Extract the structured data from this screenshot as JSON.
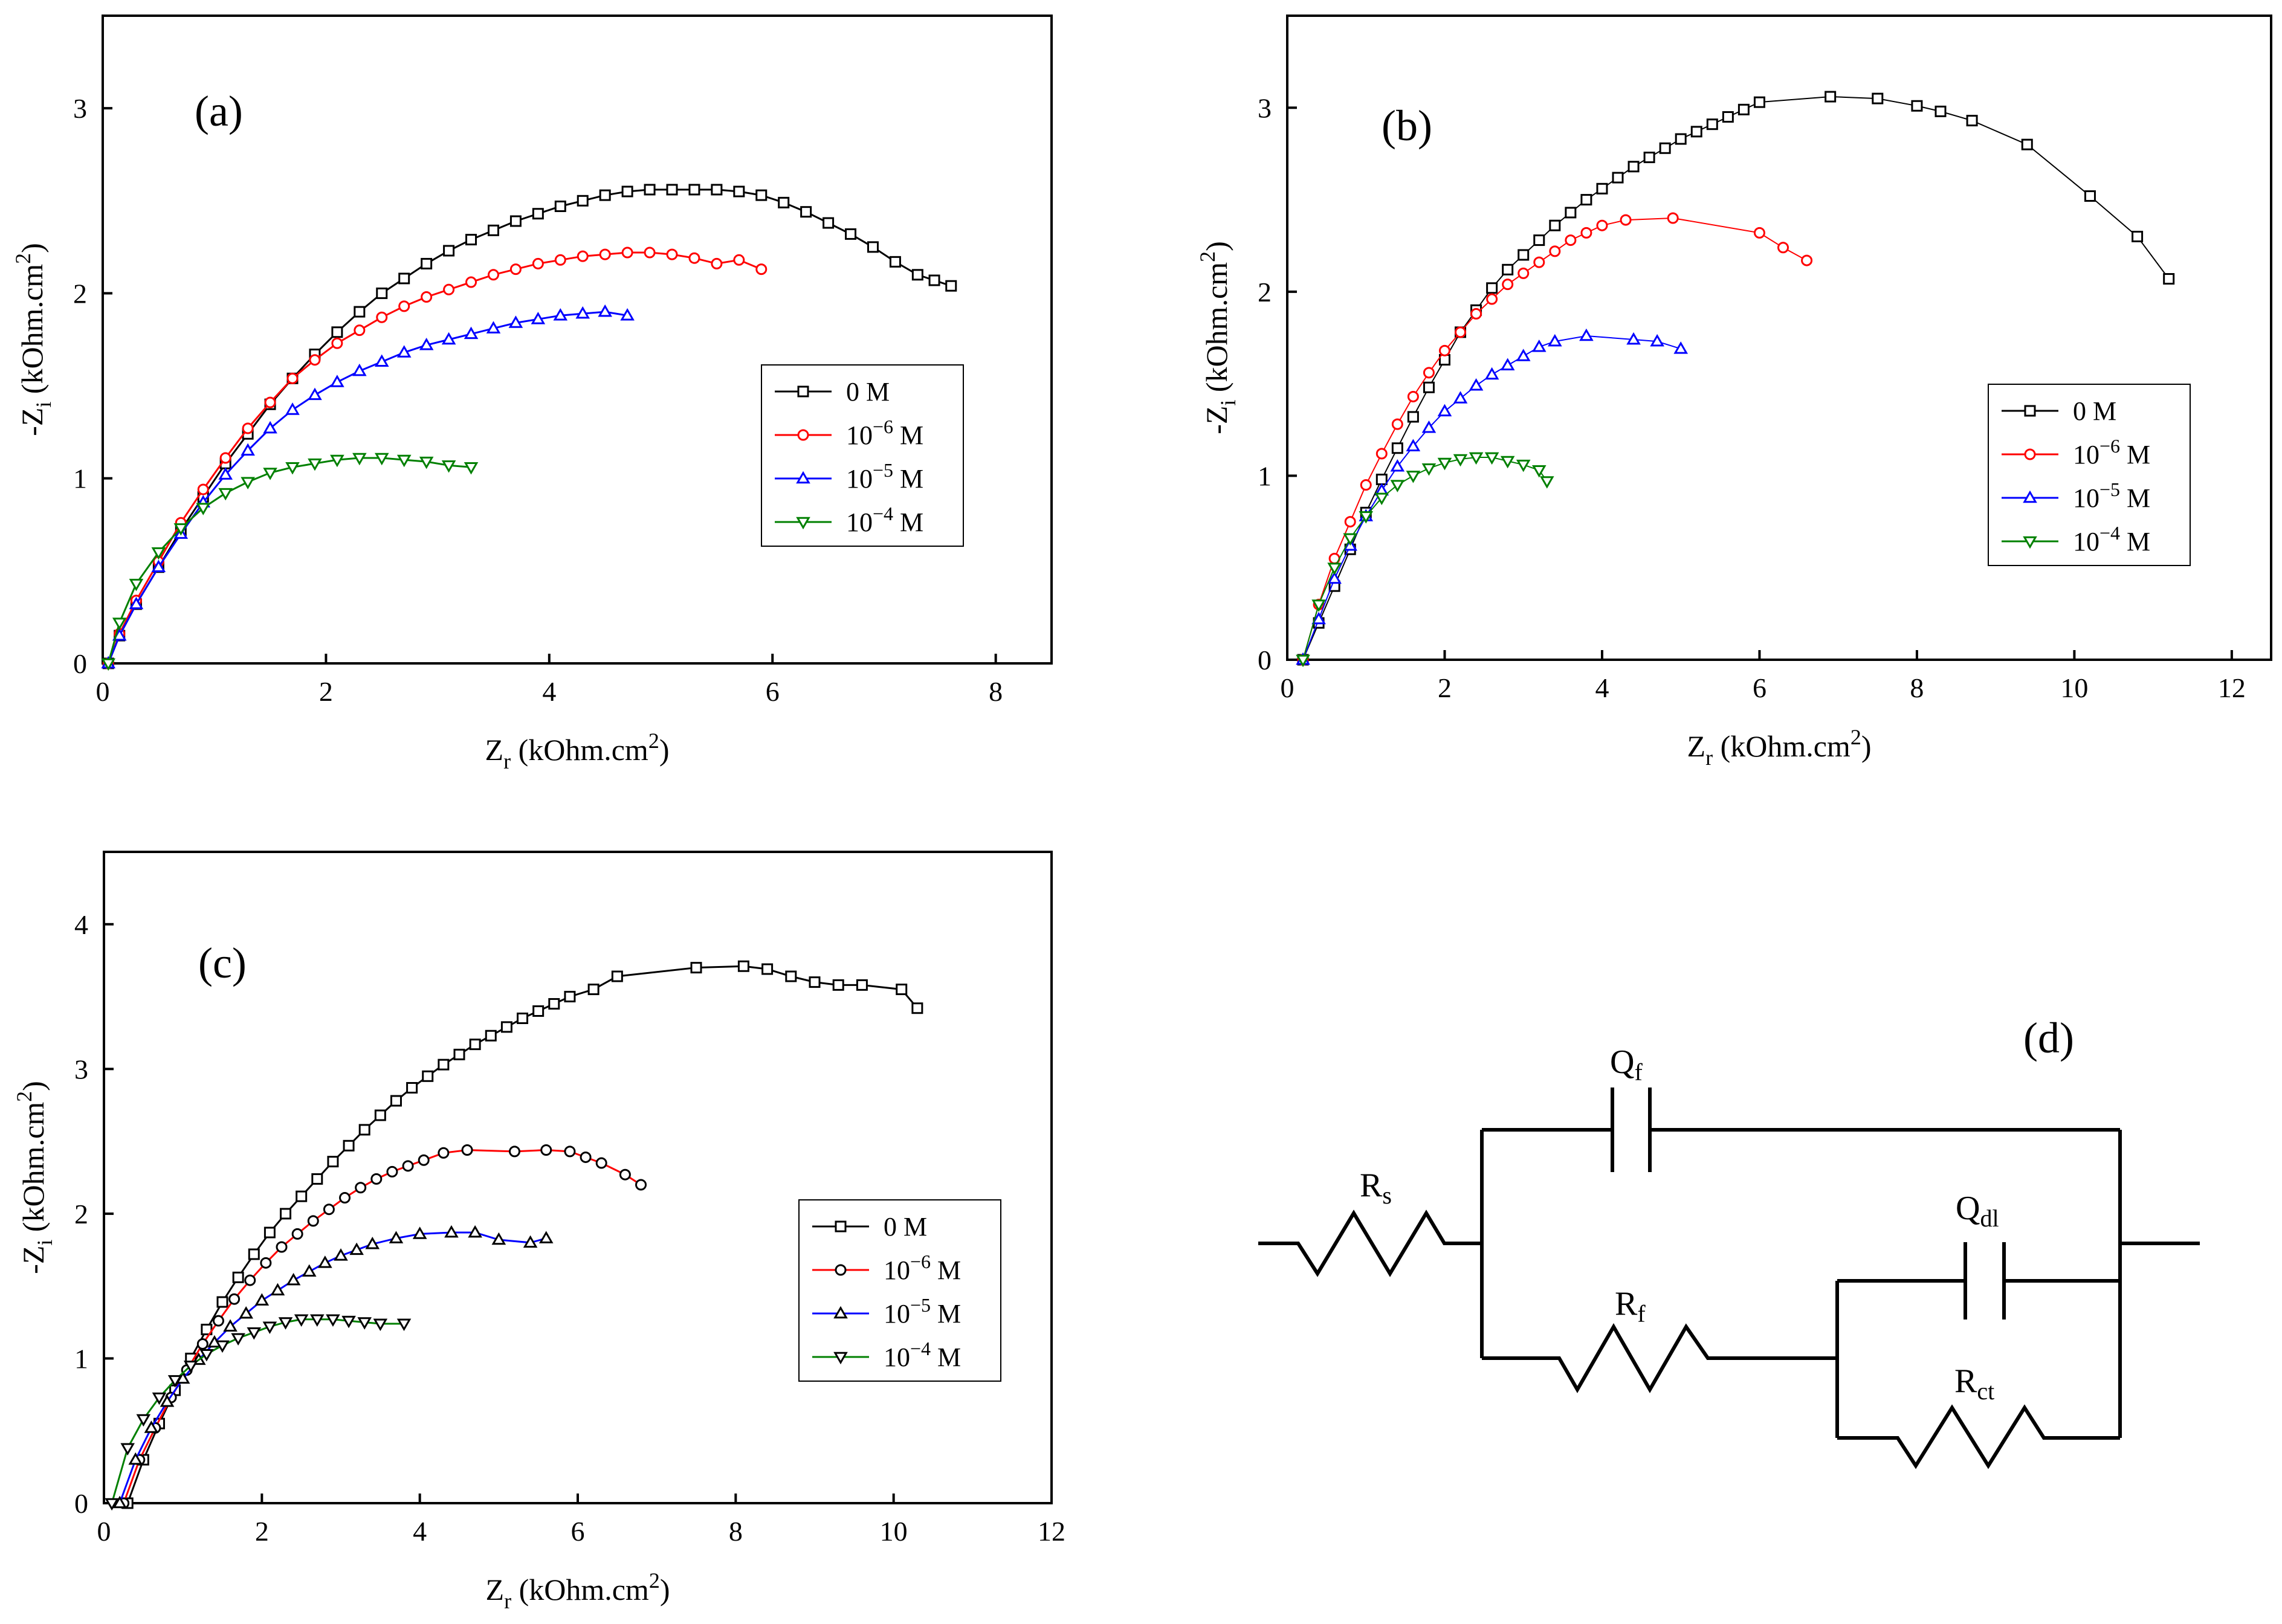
{
  "figure": {
    "xlabel_main": "Z",
    "xlabel_sub": "r",
    "xlabel_rest": " (kOhm.cm",
    "xlabel_sup": "2",
    "xlabel_close": ")",
    "ylabel_main": "-Z",
    "ylabel_sub": "i",
    "ylabel_rest": " (kOhm.cm",
    "ylabel_sup": "2",
    "ylabel_close": ")"
  },
  "legend_entries": [
    {
      "base": "0 M",
      "exp": "",
      "unit": ""
    },
    {
      "base": "10",
      "exp": "−6",
      "unit": " M"
    },
    {
      "base": "10",
      "exp": "−5",
      "unit": " M"
    },
    {
      "base": "10",
      "exp": "−4",
      "unit": " M"
    }
  ],
  "series_colors": {
    "s0": "#000000",
    "s1": "#ff0000",
    "s2": "#0000ff",
    "s3": "#008000",
    "marker_c": "#000000"
  },
  "chart_data": [
    {
      "panel": "(a)",
      "type": "line",
      "xlabel": "Zr (kOhm.cm2)",
      "ylabel": "-Zi (kOhm.cm2)",
      "xlim": [
        0,
        8.5
      ],
      "ylim": [
        0,
        3.5
      ],
      "xticks": [
        0,
        2,
        4,
        6,
        8
      ],
      "yticks": [
        0,
        1,
        2,
        3
      ],
      "legend_position": "right",
      "series": [
        {
          "name": "0 M",
          "marker": "square",
          "x": [
            0.05,
            0.15,
            0.3,
            0.5,
            0.7,
            0.9,
            1.1,
            1.3,
            1.5,
            1.7,
            1.9,
            2.1,
            2.3,
            2.5,
            2.7,
            2.9,
            3.1,
            3.3,
            3.5,
            3.7,
            3.9,
            4.1,
            4.3,
            4.5,
            4.7,
            4.9,
            5.1,
            5.3,
            5.5,
            5.7,
            5.9,
            6.1,
            6.3,
            6.5,
            6.7,
            6.9,
            7.1,
            7.3,
            7.45,
            7.6
          ],
          "y": [
            0.0,
            0.15,
            0.32,
            0.52,
            0.72,
            0.9,
            1.08,
            1.24,
            1.4,
            1.54,
            1.67,
            1.79,
            1.9,
            2.0,
            2.08,
            2.16,
            2.23,
            2.29,
            2.34,
            2.39,
            2.43,
            2.47,
            2.5,
            2.53,
            2.55,
            2.56,
            2.56,
            2.56,
            2.56,
            2.55,
            2.53,
            2.49,
            2.44,
            2.38,
            2.32,
            2.25,
            2.17,
            2.1,
            2.07,
            2.04
          ]
        },
        {
          "name": "10−6 M",
          "marker": "circle",
          "x": [
            0.05,
            0.15,
            0.3,
            0.5,
            0.7,
            0.9,
            1.1,
            1.3,
            1.5,
            1.7,
            1.9,
            2.1,
            2.3,
            2.5,
            2.7,
            2.9,
            3.1,
            3.3,
            3.5,
            3.7,
            3.9,
            4.1,
            4.3,
            4.5,
            4.7,
            4.9,
            5.1,
            5.3,
            5.5,
            5.7,
            5.9
          ],
          "y": [
            0.0,
            0.16,
            0.34,
            0.55,
            0.76,
            0.94,
            1.11,
            1.27,
            1.41,
            1.54,
            1.64,
            1.73,
            1.8,
            1.87,
            1.93,
            1.98,
            2.02,
            2.06,
            2.1,
            2.13,
            2.16,
            2.18,
            2.2,
            2.21,
            2.22,
            2.22,
            2.21,
            2.19,
            2.16,
            2.18,
            2.13
          ]
        },
        {
          "name": "10−5 M",
          "marker": "triangle-up",
          "x": [
            0.05,
            0.15,
            0.3,
            0.5,
            0.7,
            0.9,
            1.1,
            1.3,
            1.5,
            1.7,
            1.9,
            2.1,
            2.3,
            2.5,
            2.7,
            2.9,
            3.1,
            3.3,
            3.5,
            3.7,
            3.9,
            4.1,
            4.3,
            4.5,
            4.7
          ],
          "y": [
            0.0,
            0.15,
            0.32,
            0.52,
            0.7,
            0.87,
            1.02,
            1.15,
            1.27,
            1.37,
            1.45,
            1.52,
            1.58,
            1.63,
            1.68,
            1.72,
            1.75,
            1.78,
            1.81,
            1.84,
            1.86,
            1.88,
            1.89,
            1.9,
            1.88
          ]
        },
        {
          "name": "10−4 M",
          "marker": "triangle-down",
          "x": [
            0.05,
            0.15,
            0.3,
            0.5,
            0.7,
            0.9,
            1.1,
            1.3,
            1.5,
            1.7,
            1.9,
            2.1,
            2.3,
            2.5,
            2.7,
            2.9,
            3.1,
            3.3
          ],
          "y": [
            0.0,
            0.22,
            0.43,
            0.6,
            0.73,
            0.84,
            0.92,
            0.98,
            1.03,
            1.06,
            1.08,
            1.1,
            1.11,
            1.11,
            1.1,
            1.09,
            1.07,
            1.06
          ]
        }
      ]
    },
    {
      "panel": "(b)",
      "type": "line",
      "xlabel": "Zr (kOhm.cm2)",
      "ylabel": "-Zi (kOhm.cm2)",
      "xlim": [
        0,
        12.5
      ],
      "ylim": [
        0,
        3.5
      ],
      "xticks": [
        0,
        2,
        4,
        6,
        8,
        10,
        12
      ],
      "yticks": [
        0,
        1,
        2,
        3
      ],
      "legend_position": "right",
      "series": [
        {
          "name": "0 M",
          "marker": "square",
          "x": [
            0.2,
            0.4,
            0.6,
            0.8,
            1.0,
            1.2,
            1.4,
            1.6,
            1.8,
            2.0,
            2.2,
            2.4,
            2.6,
            2.8,
            3.0,
            3.2,
            3.4,
            3.6,
            3.8,
            4.0,
            4.2,
            4.4,
            4.6,
            4.8,
            5.0,
            5.2,
            5.4,
            5.6,
            5.8,
            6.0,
            6.9,
            7.5,
            8.0,
            8.3,
            8.7,
            9.4,
            10.2,
            10.8,
            11.2
          ],
          "y": [
            0.0,
            0.2,
            0.4,
            0.6,
            0.8,
            0.98,
            1.15,
            1.32,
            1.48,
            1.63,
            1.78,
            1.9,
            2.02,
            2.12,
            2.2,
            2.28,
            2.36,
            2.43,
            2.5,
            2.56,
            2.62,
            2.68,
            2.73,
            2.78,
            2.83,
            2.87,
            2.91,
            2.95,
            2.99,
            3.03,
            3.06,
            3.05,
            3.01,
            2.98,
            2.93,
            2.8,
            2.52,
            2.3,
            2.07
          ]
        },
        {
          "name": "10−6 M",
          "marker": "circle",
          "x": [
            0.2,
            0.4,
            0.6,
            0.8,
            1.0,
            1.2,
            1.4,
            1.6,
            1.8,
            2.0,
            2.2,
            2.4,
            2.6,
            2.8,
            3.0,
            3.2,
            3.4,
            3.6,
            3.8,
            4.0,
            4.3,
            4.9,
            6.0,
            6.3,
            6.6
          ],
          "y": [
            0.0,
            0.3,
            0.55,
            0.75,
            0.95,
            1.12,
            1.28,
            1.43,
            1.56,
            1.68,
            1.78,
            1.88,
            1.96,
            2.04,
            2.1,
            2.16,
            2.22,
            2.28,
            2.32,
            2.36,
            2.39,
            2.4,
            2.32,
            2.24,
            2.17
          ]
        },
        {
          "name": "10−5 M",
          "marker": "triangle-up",
          "x": [
            0.2,
            0.4,
            0.6,
            0.8,
            1.0,
            1.2,
            1.4,
            1.6,
            1.8,
            2.0,
            2.2,
            2.4,
            2.6,
            2.8,
            3.0,
            3.2,
            3.4,
            3.8,
            4.4,
            4.7,
            5.0
          ],
          "y": [
            0.0,
            0.22,
            0.44,
            0.62,
            0.78,
            0.92,
            1.05,
            1.16,
            1.26,
            1.35,
            1.42,
            1.49,
            1.55,
            1.6,
            1.65,
            1.7,
            1.73,
            1.76,
            1.74,
            1.73,
            1.69
          ]
        },
        {
          "name": "10−4 M",
          "marker": "triangle-down",
          "x": [
            0.2,
            0.4,
            0.6,
            0.8,
            1.0,
            1.2,
            1.4,
            1.6,
            1.8,
            2.0,
            2.2,
            2.4,
            2.6,
            2.8,
            3.0,
            3.2,
            3.3
          ],
          "y": [
            0.0,
            0.3,
            0.5,
            0.66,
            0.78,
            0.88,
            0.95,
            1.0,
            1.04,
            1.07,
            1.09,
            1.1,
            1.1,
            1.08,
            1.06,
            1.03,
            0.97
          ]
        }
      ]
    },
    {
      "panel": "(c)",
      "type": "line",
      "xlabel": "Zr (kOhm.cm2)",
      "ylabel": "-Zi (kOhm.cm2)",
      "xlim": [
        0,
        12
      ],
      "ylim": [
        0,
        4.5
      ],
      "xticks": [
        0,
        2,
        4,
        6,
        8,
        10,
        12
      ],
      "yticks": [
        0,
        1,
        2,
        3,
        4
      ],
      "legend_position": "right",
      "series": [
        {
          "name": "0 M",
          "marker": "square",
          "x": [
            0.3,
            0.5,
            0.7,
            0.9,
            1.1,
            1.3,
            1.5,
            1.7,
            1.9,
            2.1,
            2.3,
            2.5,
            2.7,
            2.9,
            3.1,
            3.3,
            3.5,
            3.7,
            3.9,
            4.1,
            4.3,
            4.5,
            4.7,
            4.9,
            5.1,
            5.3,
            5.5,
            5.7,
            5.9,
            6.2,
            6.5,
            7.5,
            8.1,
            8.4,
            8.7,
            9.0,
            9.3,
            9.6,
            10.1,
            10.3
          ],
          "y": [
            0.0,
            0.3,
            0.55,
            0.78,
            1.0,
            1.2,
            1.39,
            1.56,
            1.72,
            1.87,
            2.0,
            2.12,
            2.24,
            2.36,
            2.47,
            2.58,
            2.68,
            2.78,
            2.87,
            2.95,
            3.03,
            3.1,
            3.17,
            3.23,
            3.29,
            3.35,
            3.4,
            3.45,
            3.5,
            3.55,
            3.64,
            3.7,
            3.71,
            3.69,
            3.64,
            3.6,
            3.58,
            3.58,
            3.55,
            3.42
          ]
        },
        {
          "name": "10−6 M",
          "marker": "circle",
          "x": [
            0.25,
            0.45,
            0.65,
            0.85,
            1.05,
            1.25,
            1.45,
            1.65,
            1.85,
            2.05,
            2.25,
            2.45,
            2.65,
            2.85,
            3.05,
            3.25,
            3.45,
            3.65,
            3.85,
            4.05,
            4.3,
            4.6,
            5.2,
            5.6,
            5.9,
            6.1,
            6.3,
            6.6,
            6.8
          ],
          "y": [
            0.0,
            0.3,
            0.52,
            0.73,
            0.92,
            1.1,
            1.26,
            1.41,
            1.54,
            1.66,
            1.77,
            1.86,
            1.95,
            2.03,
            2.11,
            2.18,
            2.24,
            2.29,
            2.33,
            2.37,
            2.42,
            2.44,
            2.43,
            2.44,
            2.43,
            2.39,
            2.35,
            2.27,
            2.2
          ]
        },
        {
          "name": "10−5 M",
          "marker": "triangle-up",
          "x": [
            0.2,
            0.4,
            0.6,
            0.8,
            1.0,
            1.2,
            1.4,
            1.6,
            1.8,
            2.0,
            2.2,
            2.4,
            2.6,
            2.8,
            3.0,
            3.2,
            3.4,
            3.7,
            4.0,
            4.4,
            4.7,
            5.0,
            5.4,
            5.6
          ],
          "y": [
            0.0,
            0.3,
            0.52,
            0.7,
            0.86,
            0.99,
            1.11,
            1.22,
            1.31,
            1.4,
            1.47,
            1.54,
            1.6,
            1.66,
            1.71,
            1.75,
            1.79,
            1.83,
            1.86,
            1.87,
            1.87,
            1.82,
            1.8,
            1.83
          ]
        },
        {
          "name": "10−4 M",
          "marker": "triangle-down",
          "x": [
            0.1,
            0.3,
            0.5,
            0.7,
            0.9,
            1.1,
            1.3,
            1.5,
            1.7,
            1.9,
            2.1,
            2.3,
            2.5,
            2.7,
            2.9,
            3.1,
            3.3,
            3.5,
            3.8
          ],
          "y": [
            0.0,
            0.38,
            0.58,
            0.73,
            0.85,
            0.95,
            1.03,
            1.09,
            1.14,
            1.18,
            1.22,
            1.25,
            1.27,
            1.27,
            1.27,
            1.26,
            1.25,
            1.24,
            1.24
          ]
        }
      ]
    }
  ],
  "circuit": {
    "panel": "(d)",
    "labels": {
      "qf_main": "Q",
      "qf_sub": "f",
      "rs_main": "R",
      "rs_sub": "s",
      "qdl_main": "Q",
      "qdl_sub": "dl",
      "rf_main": "R",
      "rf_sub": "f",
      "rct_main": "R",
      "rct_sub": "ct"
    }
  }
}
